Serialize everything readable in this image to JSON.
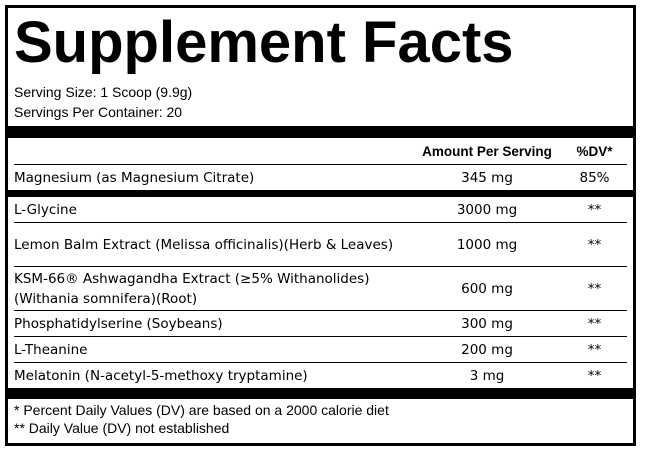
{
  "panel": {
    "title": "Supplement Facts",
    "serving_size": "Serving Size: 1 Scoop (9.9g)",
    "servings_per_container": "Servings Per Container: 20"
  },
  "table": {
    "headers": {
      "amount": "Amount Per Serving",
      "dv": "%DV*"
    },
    "primary": [
      {
        "name": "Magnesium (as Magnesium Citrate)",
        "amount": "345 mg",
        "dv": "85%"
      }
    ],
    "ingredients": [
      {
        "name": "L-Glycine",
        "amount": "3000 mg",
        "dv": "**"
      },
      {
        "name": "Lemon Balm Extract (Melissa officinalis)(Herb & Leaves)",
        "amount": "1000 mg",
        "dv": "**"
      },
      {
        "name": "KSM-66® Ashwagandha Extract (≥5% Withanolides)(Withania somnifera)(Root)",
        "amount": "600 mg",
        "dv": "**"
      },
      {
        "name": "Phosphatidylserine (Soybeans)",
        "amount": "300 mg",
        "dv": "**"
      },
      {
        "name": "L-Theanine",
        "amount": "200 mg",
        "dv": "**"
      },
      {
        "name": "Melatonin (N-acetyl-5-methoxy tryptamine)",
        "amount": "3 mg",
        "dv": "**"
      }
    ]
  },
  "footnotes": {
    "percent_dv": "* Percent Daily Values (DV) are based on a 2000 calorie diet",
    "not_established": "** Daily Value (DV) not established"
  }
}
